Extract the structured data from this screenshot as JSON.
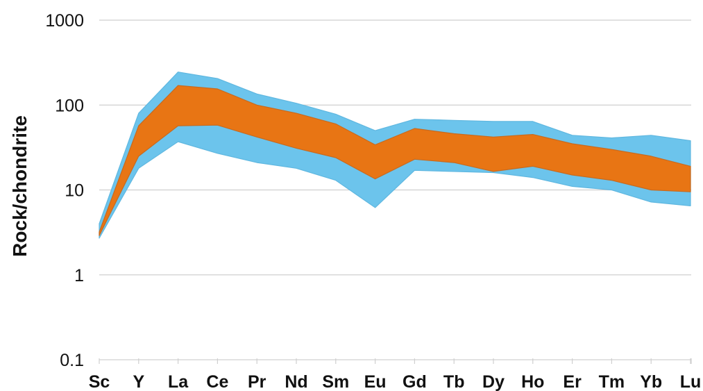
{
  "chart_data": {
    "type": "area",
    "ylabel": "Rock/chondrite",
    "yscale": "log",
    "ylim": [
      0.1,
      1000
    ],
    "yticks": [
      "0.1",
      "1",
      "10",
      "100",
      "1000"
    ],
    "categories": [
      "Sc",
      "Y",
      "La",
      "Ce",
      "Pr",
      "Nd",
      "Sm",
      "Eu",
      "Gd",
      "Tb",
      "Dy",
      "Ho",
      "Er",
      "Tm",
      "Yb",
      "Lu"
    ],
    "grid": true,
    "series": [
      {
        "color": "#6cc4ec",
        "lower": [
          2.7,
          18,
          37,
          27,
          21,
          18,
          13,
          6.2,
          17,
          16.5,
          16,
          14,
          11,
          10,
          7.2,
          6.5
        ],
        "upper": [
          4.0,
          80,
          245,
          205,
          135,
          105,
          78,
          50,
          68,
          66,
          64,
          64,
          44,
          41,
          44,
          38
        ]
      },
      {
        "color": "#e87514",
        "lower": [
          2.9,
          25,
          57,
          58,
          42,
          31,
          24,
          13.5,
          23,
          21,
          16.5,
          19,
          15,
          13,
          10,
          9.5
        ],
        "upper": [
          3.2,
          57,
          170,
          155,
          100,
          80,
          60,
          34,
          53,
          46,
          42,
          45,
          35,
          30,
          25,
          19
        ]
      }
    ]
  }
}
